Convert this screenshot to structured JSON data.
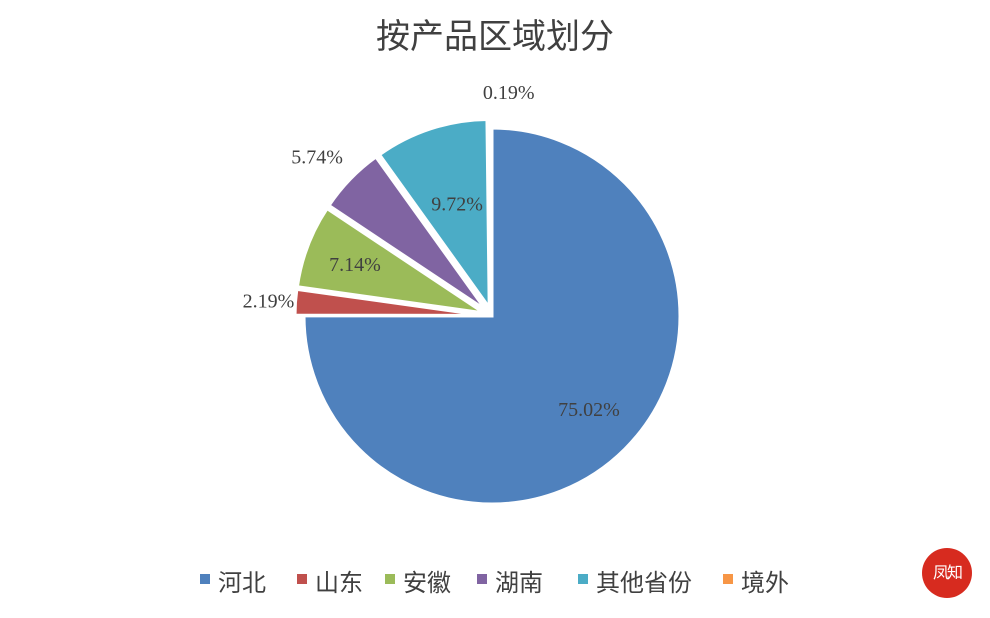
{
  "chart_data": {
    "type": "pie",
    "title": "按产品区域划分",
    "categories": [
      "河北",
      "山东",
      "安徽",
      "湖南",
      "其他省份",
      "境外"
    ],
    "values": [
      75.02,
      2.19,
      7.14,
      5.74,
      9.72,
      0.19
    ],
    "value_labels": [
      "75.02%",
      "2.19%",
      "7.14%",
      "5.74%",
      "9.72%",
      "0.19%"
    ],
    "colors": [
      "#4f81bd",
      "#c0504d",
      "#9bbb59",
      "#8064a2",
      "#4bacc6",
      "#f79646"
    ],
    "exploded_categories": [
      "山东",
      "安徽",
      "湖南",
      "其他省份",
      "境外"
    ],
    "legend_position": "bottom"
  },
  "watermark": {
    "seal_text": "凤知"
  }
}
